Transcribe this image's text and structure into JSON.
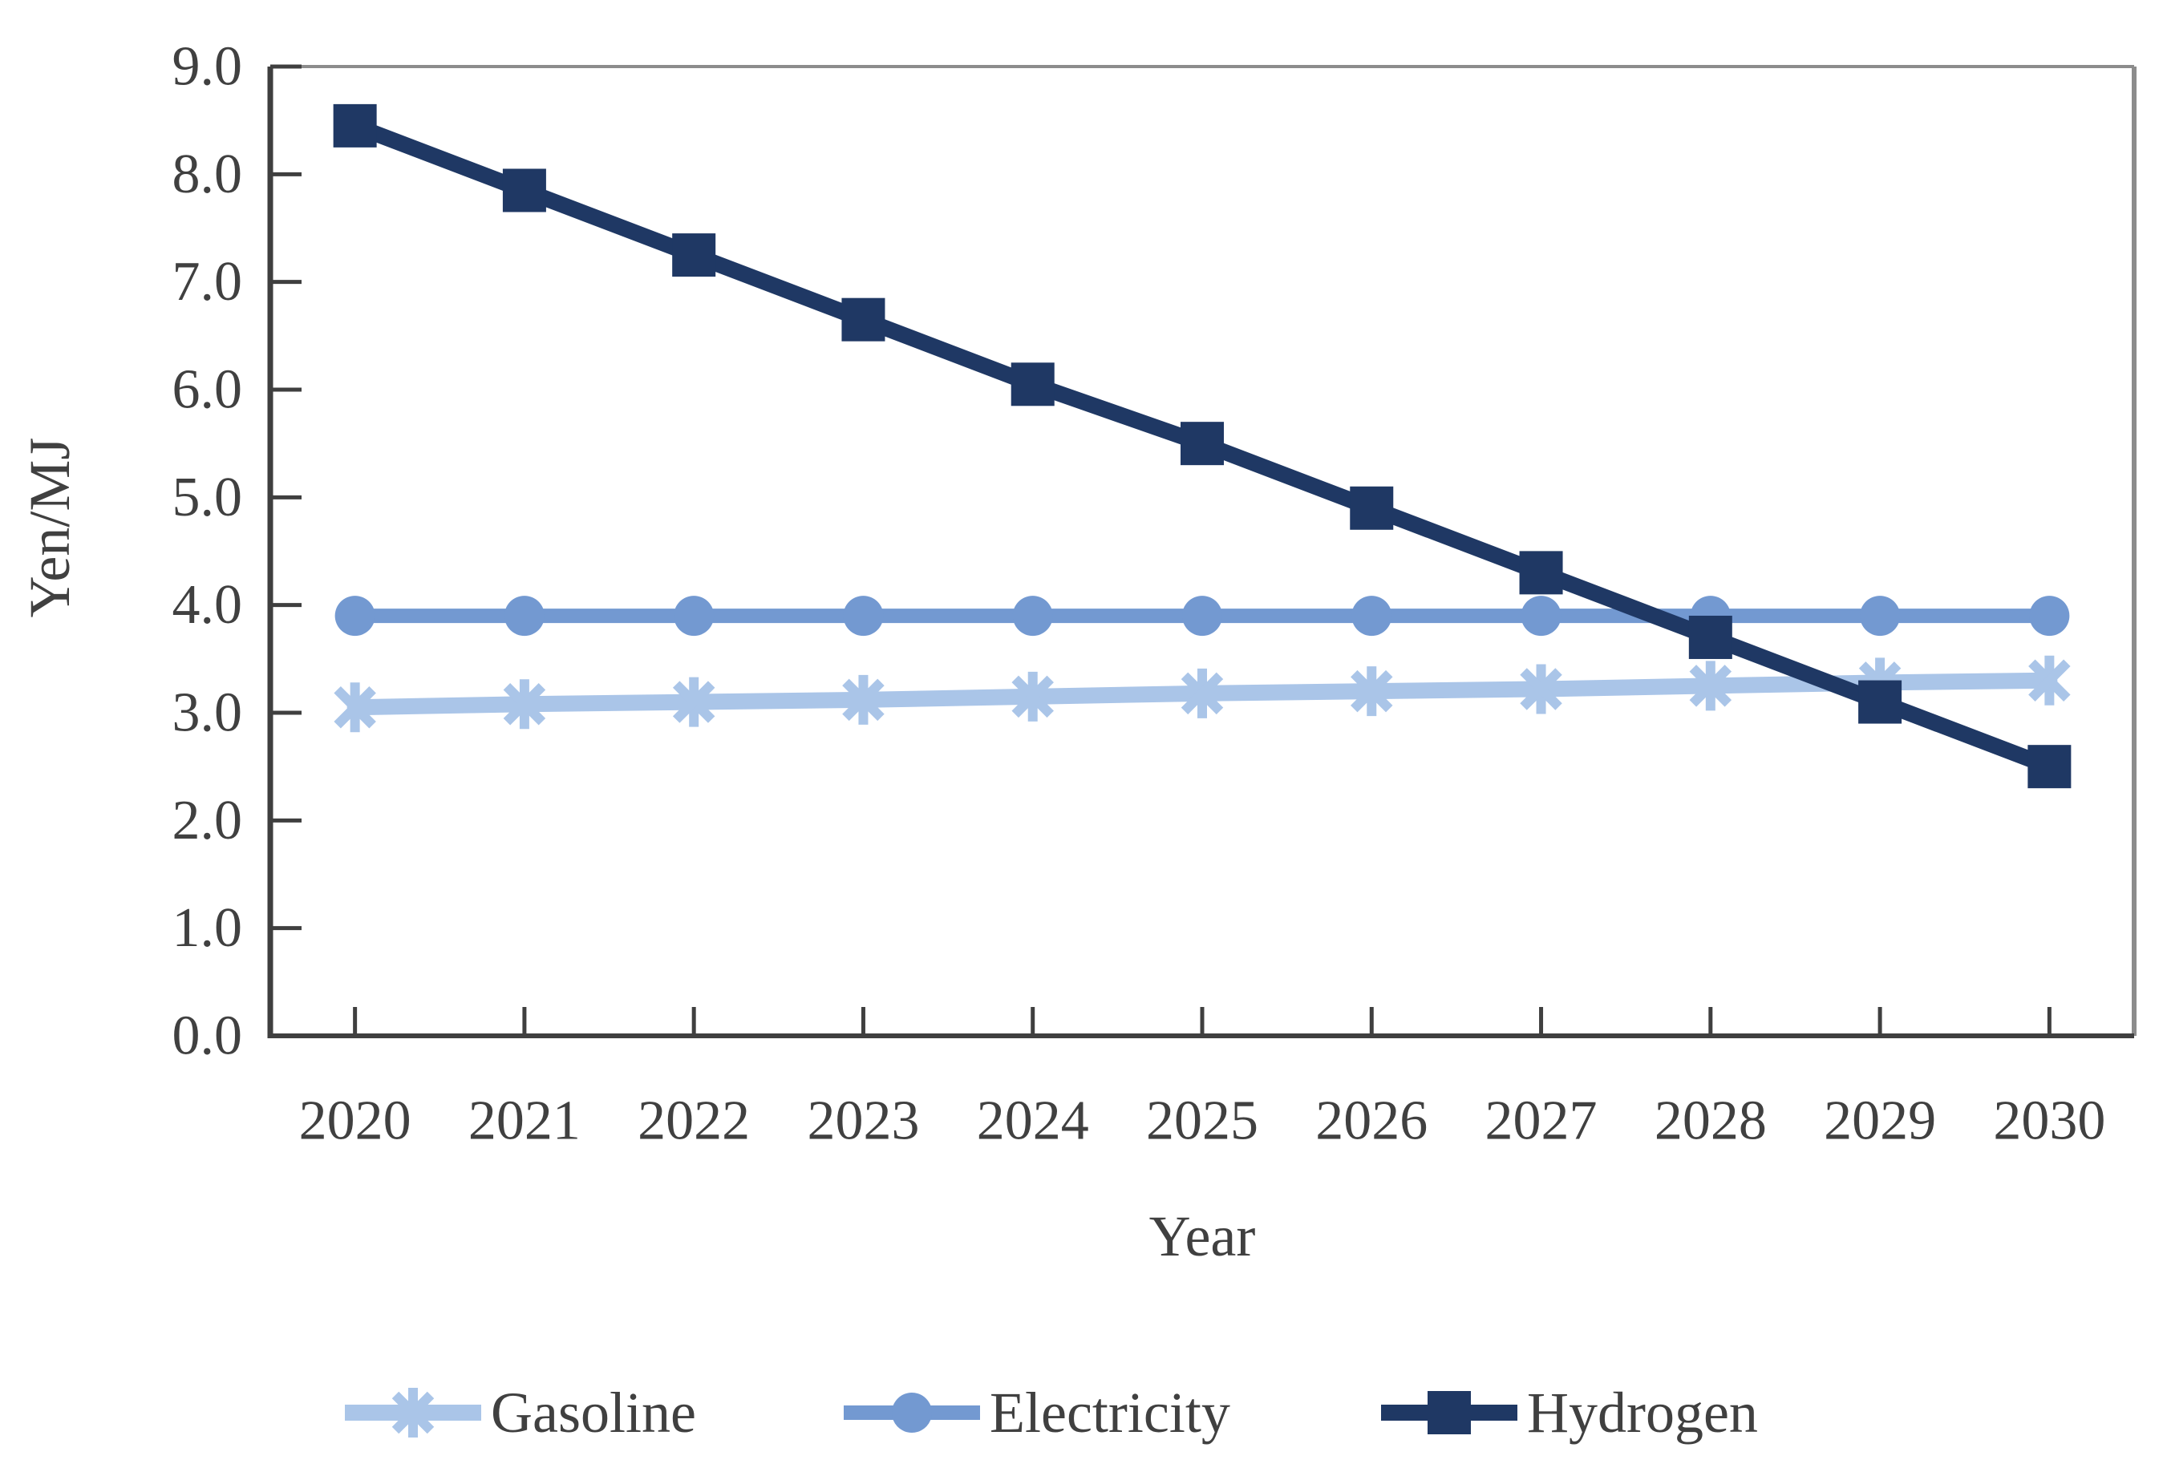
{
  "chart_data": {
    "type": "line",
    "title": "",
    "xlabel": "Year",
    "ylabel": "Yen/MJ",
    "x_categories": [
      "2020",
      "2021",
      "2022",
      "2023",
      "2024",
      "2025",
      "2026",
      "2027",
      "2028",
      "2029",
      "2030"
    ],
    "ylim": [
      0.0,
      9.0
    ],
    "ytick_step": 1.0,
    "ytick_labels": [
      "0.0",
      "1.0",
      "2.0",
      "3.0",
      "4.0",
      "5.0",
      "6.0",
      "7.0",
      "8.0",
      "9.0"
    ],
    "grid": false,
    "legend_position": "bottom",
    "series": [
      {
        "name": "Gasoline",
        "marker": "asterisk",
        "color": "#aac5e8",
        "values": [
          3.05,
          3.08,
          3.1,
          3.12,
          3.15,
          3.18,
          3.2,
          3.22,
          3.25,
          3.28,
          3.3
        ]
      },
      {
        "name": "Electricity",
        "marker": "circle",
        "color": "#7399d1",
        "values": [
          3.9,
          3.9,
          3.9,
          3.9,
          3.9,
          3.9,
          3.9,
          3.9,
          3.9,
          3.9,
          3.9
        ]
      },
      {
        "name": "Hydrogen",
        "marker": "square",
        "color": "#1f3864",
        "values": [
          8.45,
          7.85,
          7.25,
          6.65,
          6.05,
          5.5,
          4.9,
          4.3,
          3.7,
          3.1,
          2.5
        ]
      }
    ],
    "colors": {
      "axis_dark": "#3f3f3f",
      "frame_gray": "#8c8c8c",
      "text": "#404040"
    }
  }
}
